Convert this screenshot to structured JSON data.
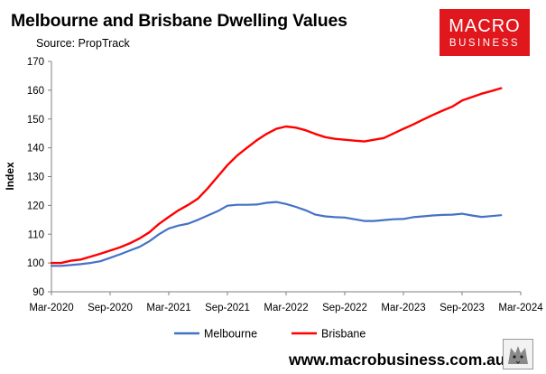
{
  "header": {
    "title": "Melbourne and Brisbane Dwelling Values",
    "subtitle": "Source: PropTrack"
  },
  "logo": {
    "line1": "MACRO",
    "line2": "BUSINESS",
    "color": "#e0171d"
  },
  "footer": {
    "url": "www.macrobusiness.com.au"
  },
  "chart_data": {
    "type": "line",
    "title": "Melbourne and Brisbane Dwelling Values",
    "xlabel": "",
    "ylabel": "Index",
    "ylim": [
      90,
      170
    ],
    "yticks": [
      90,
      100,
      110,
      120,
      130,
      140,
      150,
      160,
      170
    ],
    "xlim": [
      "2020-03",
      "2024-03"
    ],
    "xticks": [
      "Mar-2020",
      "Sep-2020",
      "Mar-2021",
      "Sep-2021",
      "Mar-2022",
      "Sep-2022",
      "Mar-2023",
      "Sep-2023",
      "Mar-2024"
    ],
    "grid": false,
    "legend_position": "bottom",
    "series": [
      {
        "name": "Melbourne",
        "color": "#4472c4",
        "x": [
          "2020-03",
          "2020-04",
          "2020-05",
          "2020-06",
          "2020-07",
          "2020-08",
          "2020-09",
          "2020-10",
          "2020-11",
          "2020-12",
          "2021-01",
          "2021-02",
          "2021-03",
          "2021-04",
          "2021-05",
          "2021-06",
          "2021-07",
          "2021-08",
          "2021-09",
          "2021-10",
          "2021-11",
          "2021-12",
          "2022-01",
          "2022-02",
          "2022-03",
          "2022-04",
          "2022-05",
          "2022-06",
          "2022-07",
          "2022-08",
          "2022-09",
          "2022-10",
          "2022-11",
          "2022-12",
          "2023-01",
          "2023-02",
          "2023-03",
          "2023-04",
          "2023-05",
          "2023-06",
          "2023-07",
          "2023-08",
          "2023-09",
          "2023-10",
          "2023-11",
          "2023-12",
          "2024-01"
        ],
        "values": [
          99,
          99,
          99.3,
          99.6,
          100,
          100.6,
          101.8,
          103,
          104.3,
          105.6,
          107.5,
          110,
          112,
          113,
          113.7,
          115,
          116.5,
          118,
          119.9,
          120.2,
          120.2,
          120.3,
          120.9,
          121.2,
          120.5,
          119.5,
          118.3,
          116.8,
          116.2,
          115.9,
          115.8,
          115.2,
          114.6,
          114.6,
          114.9,
          115.2,
          115.3,
          115.9,
          116.2,
          116.5,
          116.7,
          116.8,
          117.1,
          116.5,
          116,
          116.3,
          116.6
        ]
      },
      {
        "name": "Brisbane",
        "color": "#ff0000",
        "x": [
          "2020-03",
          "2020-04",
          "2020-05",
          "2020-06",
          "2020-07",
          "2020-08",
          "2020-09",
          "2020-10",
          "2020-11",
          "2020-12",
          "2021-01",
          "2021-02",
          "2021-03",
          "2021-04",
          "2021-05",
          "2021-06",
          "2021-07",
          "2021-08",
          "2021-09",
          "2021-10",
          "2021-11",
          "2021-12",
          "2022-01",
          "2022-02",
          "2022-03",
          "2022-04",
          "2022-05",
          "2022-06",
          "2022-07",
          "2022-08",
          "2022-09",
          "2022-10",
          "2022-11",
          "2022-12",
          "2023-01",
          "2023-02",
          "2023-03",
          "2023-04",
          "2023-05",
          "2023-06",
          "2023-07",
          "2023-08",
          "2023-09",
          "2023-10",
          "2023-11",
          "2023-12",
          "2024-01"
        ],
        "values": [
          100,
          100,
          100.8,
          101.2,
          102.2,
          103.2,
          104.3,
          105.4,
          106.8,
          108.5,
          110.6,
          113.6,
          116,
          118.3,
          120.2,
          122.4,
          126,
          130,
          134,
          137.3,
          140,
          142.6,
          144.8,
          146.6,
          147.4,
          147,
          146.1,
          144.8,
          143.7,
          143.1,
          142.8,
          142.5,
          142.2,
          142.8,
          143.4,
          145,
          146.6,
          148.1,
          149.8,
          151.4,
          152.9,
          154.3,
          156.4,
          157.6,
          158.8,
          159.7,
          160.7
        ]
      }
    ]
  }
}
